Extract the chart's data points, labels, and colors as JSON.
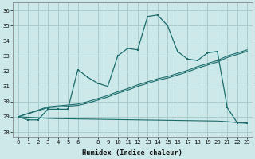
{
  "xlabel": "Humidex (Indice chaleur)",
  "background_color": "#cce8e8",
  "grid_color": "#aacccc",
  "line_color": "#1a6b6b",
  "xlim": [
    -0.5,
    23.5
  ],
  "ylim": [
    27.7,
    36.5
  ],
  "yticks": [
    28,
    29,
    30,
    31,
    32,
    33,
    34,
    35,
    36
  ],
  "x_ticks": [
    0,
    1,
    2,
    3,
    4,
    5,
    6,
    8,
    9,
    10,
    11,
    12,
    13,
    14,
    15,
    16,
    17,
    18,
    19,
    20,
    21,
    22,
    23
  ],
  "hours": [
    0,
    1,
    2,
    3,
    4,
    5,
    6,
    7,
    8,
    9,
    10,
    11,
    12,
    13,
    14,
    15,
    16,
    17,
    18,
    19,
    20,
    21,
    22,
    23
  ],
  "main_line": [
    29.0,
    28.8,
    28.8,
    29.5,
    29.5,
    29.5,
    32.1,
    31.6,
    31.2,
    31.0,
    33.0,
    33.5,
    33.4,
    35.6,
    35.7,
    35.0,
    33.3,
    32.8,
    32.7,
    33.2,
    33.3,
    29.6,
    28.6,
    28.6
  ],
  "trend_up1": [
    29.0,
    29.2,
    29.4,
    29.6,
    29.65,
    29.7,
    29.75,
    29.9,
    30.1,
    30.3,
    30.55,
    30.75,
    31.0,
    31.2,
    31.4,
    31.55,
    31.75,
    31.95,
    32.2,
    32.4,
    32.6,
    32.9,
    33.1,
    33.3
  ],
  "trend_up2": [
    29.0,
    29.22,
    29.44,
    29.66,
    29.72,
    29.78,
    29.84,
    30.0,
    30.2,
    30.4,
    30.65,
    30.85,
    31.1,
    31.3,
    31.5,
    31.65,
    31.85,
    32.05,
    32.3,
    32.5,
    32.7,
    33.0,
    33.2,
    33.4
  ],
  "trend_down": [
    29.0,
    28.97,
    28.94,
    28.9,
    28.88,
    28.87,
    28.86,
    28.85,
    28.84,
    28.83,
    28.82,
    28.81,
    28.8,
    28.79,
    28.78,
    28.77,
    28.76,
    28.75,
    28.74,
    28.73,
    28.72,
    28.68,
    28.62,
    28.58
  ]
}
